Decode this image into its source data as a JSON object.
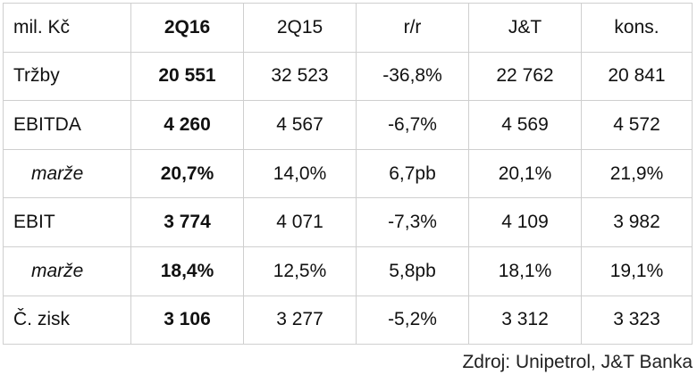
{
  "chart_data": {
    "type": "table",
    "columns": [
      "mil. Kč",
      "2Q16",
      "2Q15",
      "r/r",
      "J&T",
      "kons."
    ],
    "rows": [
      {
        "label": "Tržby",
        "indent": false,
        "values": [
          "20 551",
          "32 523",
          "-36,8%",
          "22 762",
          "20 841"
        ]
      },
      {
        "label": "EBITDA",
        "indent": false,
        "values": [
          "4 260",
          "4 567",
          "-6,7%",
          "4 569",
          "4 572"
        ]
      },
      {
        "label": "marže",
        "indent": true,
        "values": [
          "20,7%",
          "14,0%",
          "6,7pb",
          "20,1%",
          "21,9%"
        ]
      },
      {
        "label": "EBIT",
        "indent": false,
        "values": [
          "3 774",
          "4 071",
          "-7,3%",
          "4 109",
          "3 982"
        ]
      },
      {
        "label": "marže",
        "indent": true,
        "values": [
          "18,4%",
          "12,5%",
          "5,8pb",
          "18,1%",
          "19,1%"
        ]
      },
      {
        "label": "Č. zisk",
        "indent": false,
        "values": [
          "3 106",
          "3 277",
          "-5,2%",
          "3 312",
          "3 323"
        ]
      }
    ],
    "bold_column": 1
  },
  "source": "Zdroj: Unipetrol, J&T Banka"
}
